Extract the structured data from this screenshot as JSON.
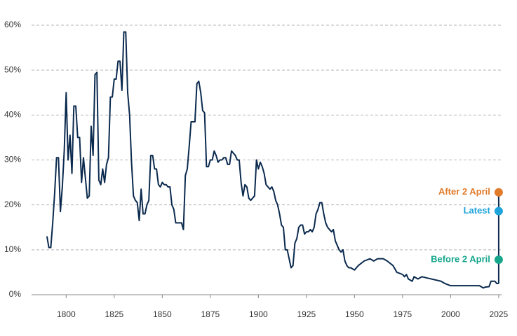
{
  "chart_data": {
    "type": "line",
    "color": "#0b2a4e",
    "xlim": [
      1782,
      2026.5
    ],
    "ylim": [
      0,
      60
    ],
    "xticks": [
      1800,
      1825,
      1850,
      1875,
      1900,
      1925,
      1950,
      1975,
      2000,
      2025
    ],
    "yticks": [
      {
        "value": 0,
        "label": "0%"
      },
      {
        "value": 10,
        "label": "10%"
      },
      {
        "value": 20,
        "label": "20%"
      },
      {
        "value": 30,
        "label": "30%"
      },
      {
        "value": 40,
        "label": "40%"
      },
      {
        "value": 50,
        "label": "50%"
      },
      {
        "value": 60,
        "label": "60%"
      }
    ],
    "grid": true,
    "x": [
      1790,
      1791,
      1792,
      1793,
      1794,
      1795,
      1796,
      1797,
      1798,
      1799,
      1800,
      1801,
      1802,
      1803,
      1804,
      1805,
      1806,
      1807,
      1808,
      1809,
      1810,
      1811,
      1812,
      1813,
      1814,
      1815,
      1816,
      1817,
      1818,
      1819,
      1820,
      1821,
      1822,
      1823,
      1824,
      1825,
      1826,
      1827,
      1828,
      1829,
      1830,
      1831,
      1832,
      1833,
      1834,
      1835,
      1836,
      1837,
      1838,
      1839,
      1840,
      1841,
      1842,
      1843,
      1844,
      1845,
      1846,
      1847,
      1848,
      1849,
      1850,
      1851,
      1852,
      1853,
      1854,
      1855,
      1856,
      1857,
      1858,
      1859,
      1860,
      1861,
      1862,
      1863,
      1864,
      1865,
      1866,
      1867,
      1868,
      1869,
      1870,
      1871,
      1872,
      1873,
      1874,
      1875,
      1876,
      1877,
      1878,
      1879,
      1880,
      1881,
      1882,
      1883,
      1884,
      1885,
      1886,
      1887,
      1888,
      1889,
      1890,
      1891,
      1892,
      1893,
      1894,
      1895,
      1896,
      1897,
      1898,
      1899,
      1900,
      1901,
      1902,
      1903,
      1904,
      1905,
      1906,
      1907,
      1908,
      1909,
      1910,
      1911,
      1912,
      1913,
      1914,
      1915,
      1916,
      1917,
      1918,
      1919,
      1920,
      1921,
      1922,
      1923,
      1924,
      1925,
      1926,
      1927,
      1928,
      1929,
      1930,
      1931,
      1932,
      1933,
      1934,
      1935,
      1936,
      1937,
      1938,
      1939,
      1940,
      1941,
      1942,
      1943,
      1944,
      1945,
      1946,
      1947,
      1948,
      1950,
      1952,
      1955,
      1958,
      1960,
      1962,
      1965,
      1967,
      1970,
      1972,
      1975,
      1976,
      1977,
      1978,
      1980,
      1981,
      1983,
      1985,
      1990,
      1995,
      1997,
      2000,
      2005,
      2010,
      2015,
      2017,
      2018,
      2020,
      2021,
      2023,
      2024,
      2025
    ],
    "values": [
      13,
      10.5,
      10.5,
      16,
      22.5,
      30.5,
      30.5,
      18.5,
      24,
      32,
      45,
      30,
      35.5,
      27,
      42,
      42,
      35,
      35,
      25,
      30.5,
      26,
      21.5,
      22,
      37.5,
      31,
      49,
      49.5,
      25.5,
      24.5,
      28,
      25,
      29,
      30.5,
      44,
      44,
      48,
      48,
      52,
      52,
      45.5,
      58.5,
      58.5,
      45,
      40,
      29.5,
      22,
      21,
      20.5,
      16.5,
      23.5,
      18,
      18,
      20,
      21,
      31,
      31,
      28,
      28,
      24.5,
      24,
      25,
      24.5,
      24.5,
      24,
      24,
      20,
      19,
      16,
      16,
      16,
      16,
      14.5,
      26.5,
      28,
      33,
      38.5,
      38.5,
      38.5,
      47,
      47.5,
      45,
      41,
      40.5,
      28.5,
      28.5,
      30,
      30,
      32,
      31,
      29.5,
      30,
      30,
      30.5,
      30.5,
      29,
      29,
      32,
      31.5,
      31,
      30,
      30,
      25,
      22,
      24.5,
      24,
      21.5,
      21,
      21.5,
      22,
      30,
      28,
      29.5,
      28.5,
      27,
      24.5,
      24,
      23.5,
      24,
      23,
      21,
      20,
      18,
      15.5,
      15,
      10,
      10,
      8,
      6,
      6.5,
      11.5,
      12.5,
      15,
      15.5,
      15.5,
      13.5,
      14,
      14,
      14.5,
      14,
      15,
      18,
      19,
      20.5,
      20.5,
      18,
      16,
      15,
      14.5,
      14,
      14.5,
      12,
      11,
      10,
      9.5,
      10,
      7.5,
      6.5,
      6,
      6,
      5.5,
      6.5,
      7.5,
      8,
      7.5,
      8,
      8,
      7.5,
      6.5,
      5,
      4.5,
      4,
      4.5,
      3.5,
      3,
      4,
      3.5,
      4,
      3.5,
      3,
      2.5,
      2,
      2,
      2,
      2,
      1.5,
      1.7,
      1.8,
      3,
      3,
      2.5,
      2.5
    ],
    "markers": [
      {
        "label": "After 2 April",
        "x": 2025,
        "value": 22.8,
        "color": "#e07b2a"
      },
      {
        "label": "Latest",
        "x": 2025,
        "value": 18.6,
        "color": "#1fa3db"
      },
      {
        "label": "Before 2 April",
        "x": 2025,
        "value": 7.8,
        "color": "#17a68c"
      }
    ]
  }
}
